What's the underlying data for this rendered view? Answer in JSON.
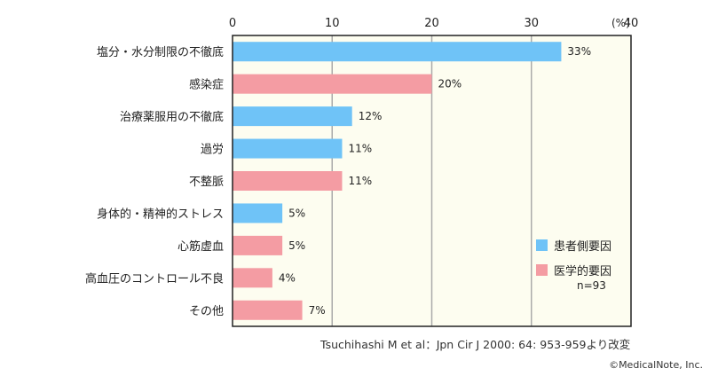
{
  "chart_data": {
    "type": "bar",
    "orientation": "horizontal",
    "categories": [
      "塩分・水分制限の不徹底",
      "感染症",
      "治療薬服用の不徹底",
      "過労",
      "不整脈",
      "身体的・精神的ストレス",
      "心筋虚血",
      "高血圧のコントロール不良",
      "その他"
    ],
    "values": [
      33,
      20,
      12,
      11,
      11,
      5,
      5,
      4,
      7
    ],
    "value_labels": [
      "33%",
      "20%",
      "12%",
      "11%",
      "11%",
      "5%",
      "5%",
      "4%",
      "7%"
    ],
    "groups": [
      "patient",
      "medical",
      "patient",
      "patient",
      "medical",
      "patient",
      "medical",
      "medical",
      "medical"
    ],
    "xlim": [
      0,
      40
    ],
    "x_ticks": [
      0,
      10,
      20,
      30,
      40
    ],
    "x_unit": "(%)",
    "grid": true,
    "legend": {
      "placement": "bottom-right",
      "entries": [
        {
          "key": "patient",
          "label": "患者側要因",
          "color": "#6fc3f7"
        },
        {
          "key": "medical",
          "label": "医学的要因",
          "color": "#f49ca3"
        }
      ],
      "note": "n=93"
    },
    "colors": {
      "patient": "#6fc3f7",
      "medical": "#f49ca3",
      "plot_background": "#fdfdf0",
      "grid": "#aaaaaa"
    }
  },
  "footer": {
    "citation": "Tsuchihashi M et al：Jpn Cir J 2000: 64: 953-959より改変",
    "copyright": "©MedicalNote, Inc."
  }
}
